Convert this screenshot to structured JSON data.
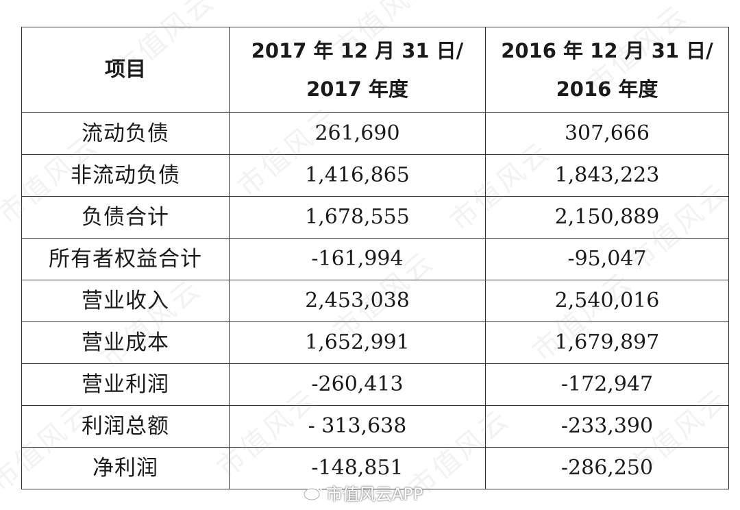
{
  "table": {
    "headers": {
      "item": "项目",
      "col2017_line1": "2017 年 12 月 31 日/",
      "col2017_line2": "2017 年度",
      "col2016_line1": "2016 年 12 月 31 日/",
      "col2016_line2": "2016 年度"
    },
    "rows": [
      {
        "label": "流动负债",
        "v2017": "261,690",
        "v2016": "307,666"
      },
      {
        "label": "非流动负债",
        "v2017": "1,416,865",
        "v2016": "1,843,223"
      },
      {
        "label": "负债合计",
        "v2017": "1,678,555",
        "v2016": "2,150,889"
      },
      {
        "label": "所有者权益合计",
        "v2017": "-161,994",
        "v2016": "-95,047"
      },
      {
        "label": "营业收入",
        "v2017": "2,453,038",
        "v2016": "2,540,016"
      },
      {
        "label": "营业成本",
        "v2017": "1,652,991",
        "v2016": "1,679,897"
      },
      {
        "label": "营业利润",
        "v2017": "-260,413",
        "v2016": "-172,947"
      },
      {
        "label": "利润总额",
        "v2017": "- 313,638",
        "v2016": "-233,390"
      },
      {
        "label": "净利润",
        "v2017": "-148,851",
        "v2016": "-286,250"
      }
    ]
  },
  "watermark": {
    "text": "市值风云"
  },
  "weibo": {
    "icon": "weibo-icon",
    "text": "市值风云APP"
  }
}
